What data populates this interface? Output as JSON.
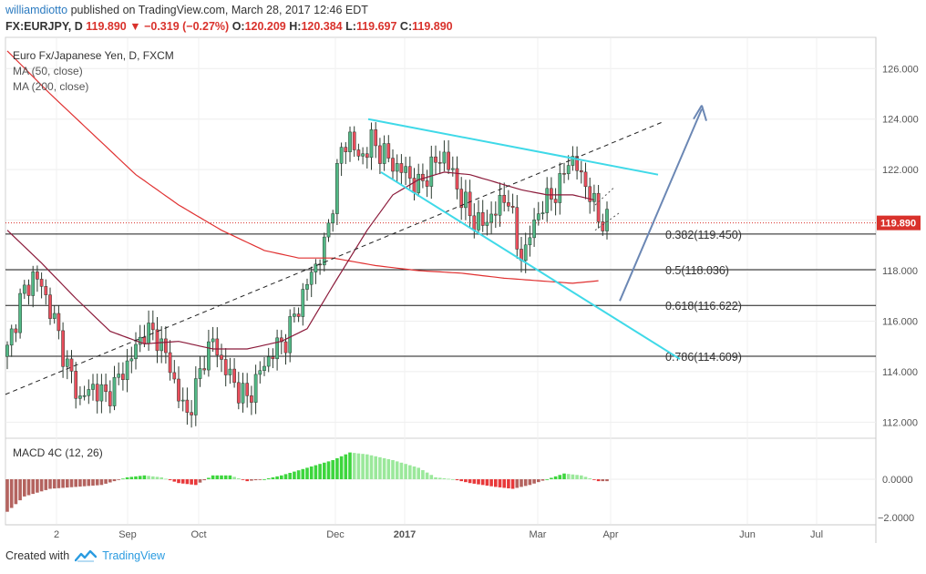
{
  "header": {
    "author": "williamdiotto",
    "published_text": "published on TradingView.com, March 28, 2017 12:46 EDT"
  },
  "quote": {
    "symbol": "FX:EURJPY, D",
    "price": "119.890",
    "change_arrow": "▼",
    "change": "−0.319 (−0.27%)",
    "o_label": "O:",
    "o_value": "120.209",
    "h_label": "H:",
    "h_value": "120.384",
    "l_label": "L:",
    "l_value": "119.697",
    "c_label": "C:",
    "c_value": "119.890"
  },
  "footer": {
    "created_with": "Created with",
    "brand": "TradingView"
  },
  "colors": {
    "bull": "#53b987",
    "bear": "#eb4d5c",
    "ma50": "#8b1a3a",
    "ma200": "#e03131",
    "channel": "#3fd9e8",
    "arrow": "#6b87b4",
    "price_line": "#d9322c",
    "macd_up_strong": "#3dd63d",
    "macd_up_weak": "#9be89b",
    "macd_down_strong": "#e8383a",
    "macd_down_weak": "#b4635f"
  },
  "chart_data": {
    "type": "candlestick",
    "title": "Euro Fx/Japanese Yen, D, FXCM",
    "indicators": [
      "MA (50, close)",
      "MA (200, close)"
    ],
    "ylim": [
      111.4,
      127.2
    ],
    "y_ticks": [
      "112.000",
      "114.000",
      "116.000",
      "118.000",
      "120.000",
      "122.000",
      "124.000",
      "126.000"
    ],
    "x_labels": [
      "2",
      "Sep",
      "Oct",
      "Dec",
      "2017",
      "Mar",
      "Apr",
      "Jun",
      "Jul"
    ],
    "last_price": "119.890",
    "fib_levels": [
      {
        "label": "0.382(119.450)",
        "value": 119.45
      },
      {
        "label": "0.5(118.036)",
        "value": 118.036
      },
      {
        "label": "0.618(116.622)",
        "value": 116.622
      },
      {
        "label": "0.786(114.609)",
        "value": 114.609
      }
    ],
    "macd": {
      "title": "MACD 4C (12, 26)",
      "y_ticks": [
        "0.0000",
        "−2.0000"
      ]
    },
    "price_path": [
      [
        0,
        114.8
      ],
      [
        3,
        116.8
      ],
      [
        6,
        117.8
      ],
      [
        8,
        117.4
      ],
      [
        11,
        116.0
      ],
      [
        14,
        114.2
      ],
      [
        17,
        112.9
      ],
      [
        20,
        113.4
      ],
      [
        23,
        113.0
      ],
      [
        26,
        113.7
      ],
      [
        29,
        114.6
      ],
      [
        32,
        115.6
      ],
      [
        35,
        115.4
      ],
      [
        38,
        114.2
      ],
      [
        40,
        113.0
      ],
      [
        42,
        112.3
      ],
      [
        44,
        113.3
      ],
      [
        46,
        114.6
      ],
      [
        48,
        115.2
      ],
      [
        50,
        114.4
      ],
      [
        53,
        113.5
      ],
      [
        56,
        112.9
      ],
      [
        59,
        114.0
      ],
      [
        62,
        114.8
      ],
      [
        65,
        115.3
      ],
      [
        68,
        116.6
      ],
      [
        71,
        117.9
      ],
      [
        74,
        118.9
      ],
      [
        76,
        120.8
      ],
      [
        78,
        122.8
      ],
      [
        80,
        123.3
      ],
      [
        82,
        122.4
      ],
      [
        85,
        123.1
      ],
      [
        88,
        122.6
      ],
      [
        90,
        122.2
      ],
      [
        93,
        121.9
      ],
      [
        96,
        121.3
      ],
      [
        99,
        122.1
      ],
      [
        102,
        122.6
      ],
      [
        105,
        121.3
      ],
      [
        108,
        120.2
      ],
      [
        111,
        119.8
      ],
      [
        114,
        120.4
      ],
      [
        117,
        121.0
      ],
      [
        119,
        118.9
      ],
      [
        121,
        118.7
      ],
      [
        123,
        120.0
      ],
      [
        126,
        120.8
      ],
      [
        129,
        121.3
      ],
      [
        131,
        122.5
      ],
      [
        134,
        121.8
      ],
      [
        136,
        121.0
      ],
      [
        138,
        120.1
      ],
      [
        140,
        119.9
      ]
    ],
    "ma50_path": [
      [
        0,
        119.6
      ],
      [
        8,
        118.3
      ],
      [
        16,
        116.9
      ],
      [
        24,
        115.6
      ],
      [
        32,
        115.1
      ],
      [
        40,
        115.2
      ],
      [
        48,
        114.9
      ],
      [
        56,
        114.9
      ],
      [
        64,
        115.2
      ],
      [
        70,
        115.7
      ],
      [
        76,
        117.4
      ],
      [
        84,
        119.6
      ],
      [
        90,
        121.0
      ],
      [
        96,
        121.6
      ],
      [
        102,
        121.9
      ],
      [
        108,
        121.8
      ],
      [
        114,
        121.5
      ],
      [
        120,
        121.2
      ],
      [
        126,
        121.0
      ],
      [
        132,
        121.0
      ],
      [
        137,
        120.8
      ]
    ],
    "ma200_path": [
      [
        0,
        126.7
      ],
      [
        10,
        125.0
      ],
      [
        20,
        123.4
      ],
      [
        30,
        121.8
      ],
      [
        40,
        120.6
      ],
      [
        50,
        119.6
      ],
      [
        60,
        118.8
      ],
      [
        68,
        118.5
      ],
      [
        76,
        118.5
      ],
      [
        86,
        118.2
      ],
      [
        96,
        118.0
      ],
      [
        106,
        117.9
      ],
      [
        116,
        117.7
      ],
      [
        124,
        117.6
      ],
      [
        132,
        117.5
      ],
      [
        138,
        117.6
      ]
    ],
    "macd_path": [
      [
        0,
        -1.7
      ],
      [
        4,
        -0.9
      ],
      [
        10,
        -0.5
      ],
      [
        16,
        -0.4
      ],
      [
        22,
        -0.3
      ],
      [
        28,
        0.1
      ],
      [
        32,
        0.2
      ],
      [
        36,
        0.1
      ],
      [
        40,
        -0.2
      ],
      [
        44,
        -0.3
      ],
      [
        48,
        0.2
      ],
      [
        52,
        0.2
      ],
      [
        56,
        -0.1
      ],
      [
        60,
        0.0
      ],
      [
        64,
        0.2
      ],
      [
        70,
        0.6
      ],
      [
        76,
        1.0
      ],
      [
        80,
        1.4
      ],
      [
        84,
        1.3
      ],
      [
        90,
        1.0
      ],
      [
        96,
        0.6
      ],
      [
        100,
        0.1
      ],
      [
        104,
        0.0
      ],
      [
        108,
        -0.2
      ],
      [
        114,
        -0.4
      ],
      [
        118,
        -0.5
      ],
      [
        122,
        -0.3
      ],
      [
        126,
        0.0
      ],
      [
        130,
        0.3
      ],
      [
        134,
        0.2
      ],
      [
        138,
        -0.1
      ]
    ]
  }
}
